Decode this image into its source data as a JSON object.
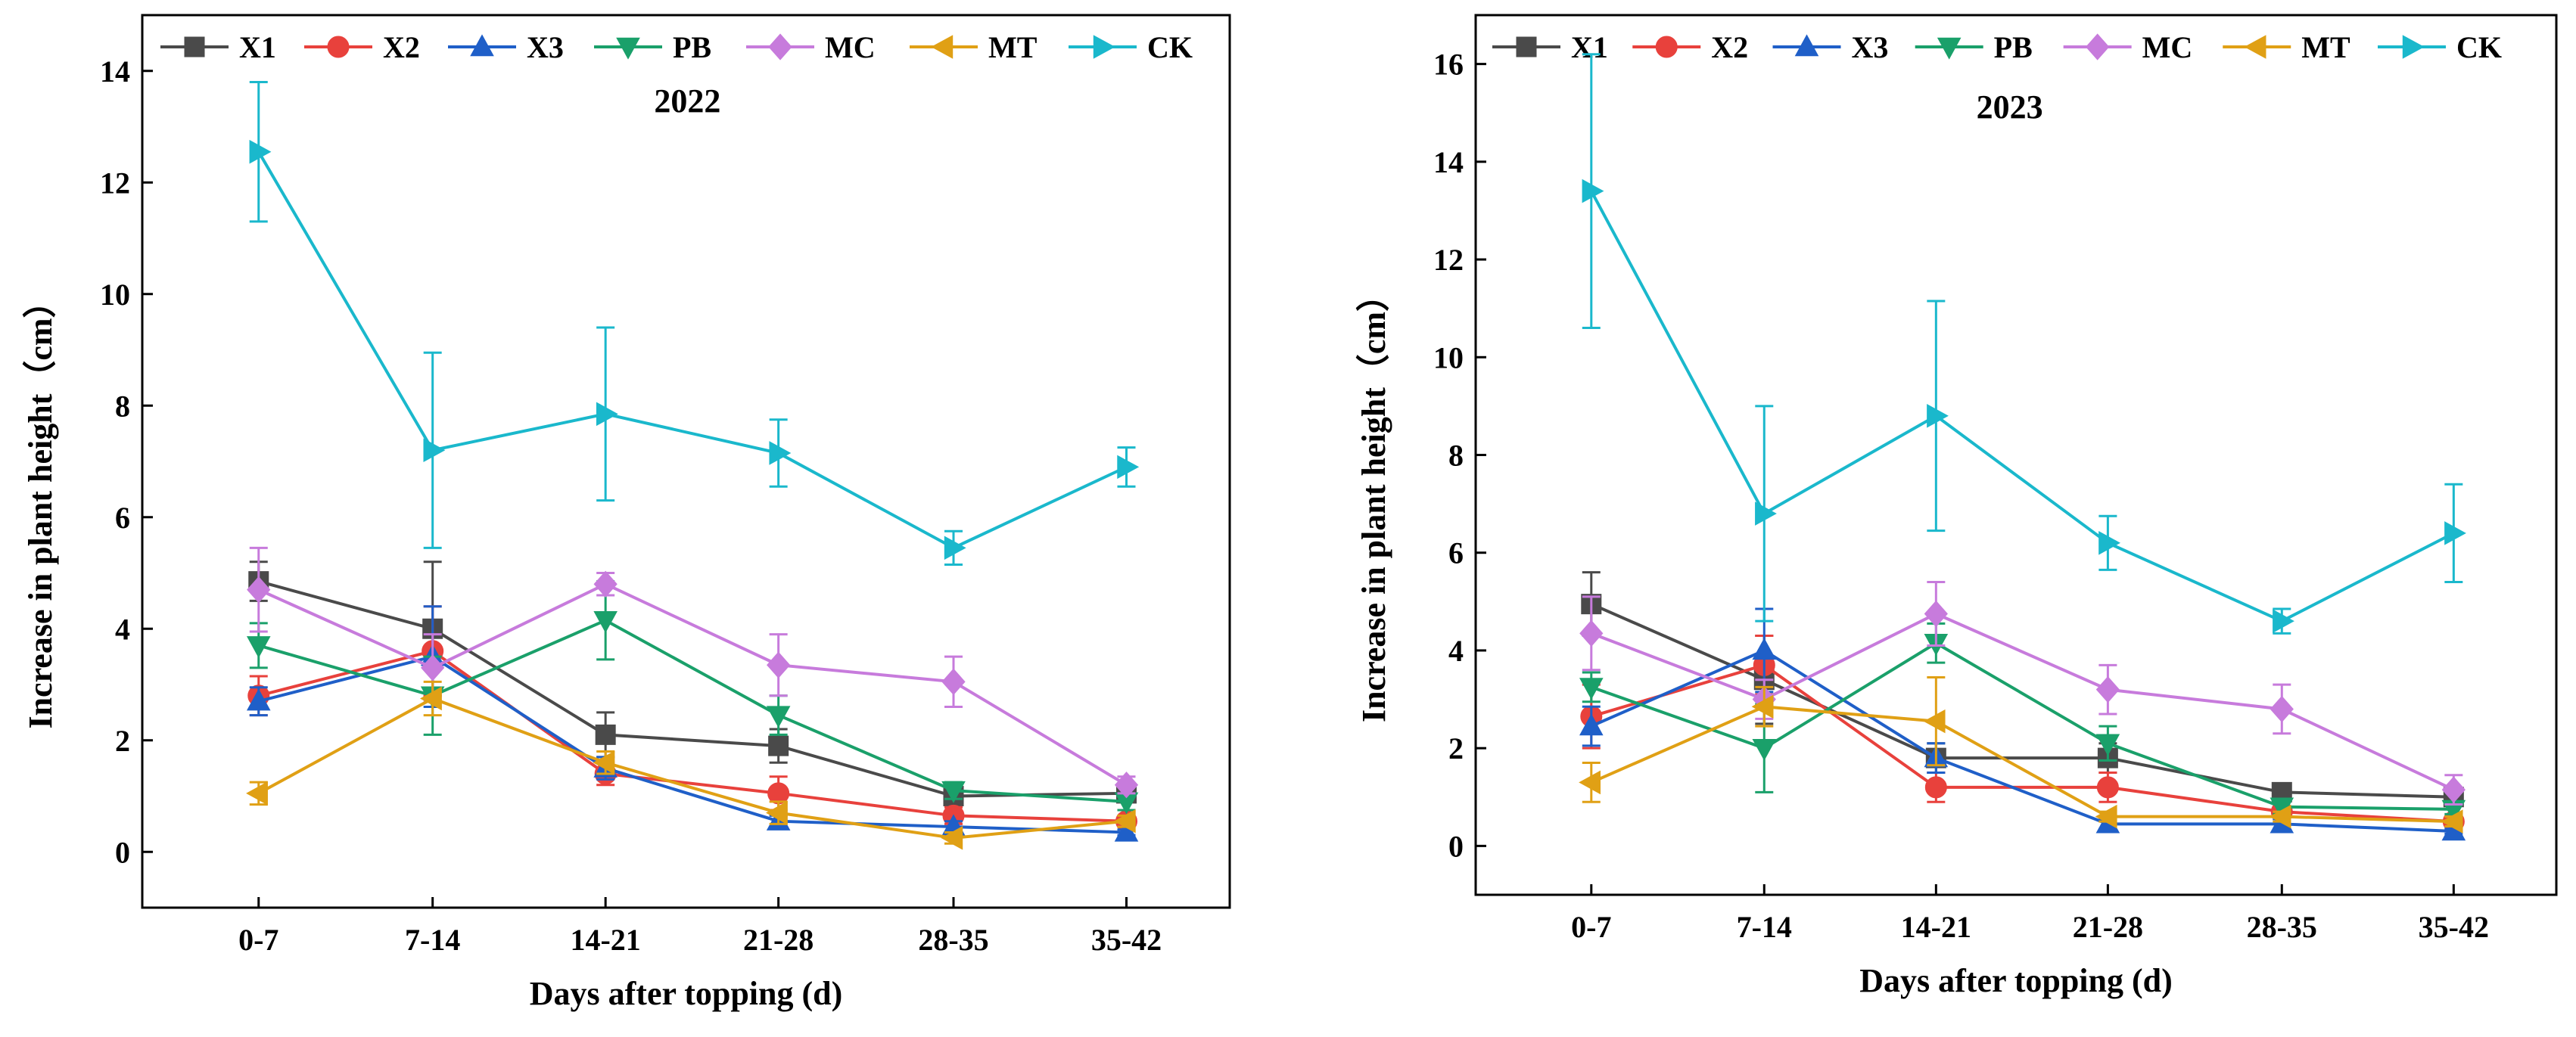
{
  "chart_data": [
    {
      "type": "line",
      "title": "2022",
      "xlabel": "Days after topping (d)",
      "ylabel": "Increase in plant height（cm）",
      "categories": [
        "0-7",
        "7-14",
        "14-21",
        "21-28",
        "28-35",
        "35-42"
      ],
      "ylim": [
        -1,
        15
      ],
      "yticks": [
        0,
        2,
        4,
        6,
        8,
        10,
        12,
        14
      ],
      "yticks_labels": [
        "0",
        "2",
        "4",
        "6",
        "8",
        "10",
        "12",
        "14"
      ],
      "legend_position": "top",
      "series": [
        {
          "name": "X1",
          "marker": "square",
          "color": "#4a4a4a",
          "values": [
            4.85,
            4.0,
            2.1,
            1.9,
            1.0,
            1.05
          ],
          "errors": [
            0.35,
            1.2,
            0.4,
            0.3,
            0.15,
            0.1
          ]
        },
        {
          "name": "X2",
          "marker": "circle",
          "color": "#e8413c",
          "values": [
            2.8,
            3.6,
            1.4,
            1.05,
            0.65,
            0.55
          ],
          "errors": [
            0.35,
            0.8,
            0.2,
            0.3,
            0.15,
            0.1
          ]
        },
        {
          "name": "X3",
          "marker": "triangle-up",
          "color": "#1f5fc8",
          "values": [
            2.7,
            3.5,
            1.5,
            0.55,
            0.45,
            0.35
          ],
          "errors": [
            0.25,
            0.9,
            0.2,
            0.1,
            0.1,
            0.05
          ]
        },
        {
          "name": "PB",
          "marker": "triangle-down",
          "color": "#1aa06a",
          "values": [
            3.7,
            2.8,
            4.15,
            2.45,
            1.1,
            0.9
          ],
          "errors": [
            0.4,
            0.7,
            0.7,
            0.35,
            0.15,
            0.15
          ]
        },
        {
          "name": "MC",
          "marker": "diamond",
          "color": "#c77bdc",
          "values": [
            4.7,
            3.3,
            4.8,
            3.35,
            3.05,
            1.2
          ],
          "errors": [
            0.75,
            0.6,
            0.2,
            0.55,
            0.45,
            0.15
          ]
        },
        {
          "name": "MT",
          "marker": "triangle-left",
          "color": "#e0a015",
          "values": [
            1.05,
            2.75,
            1.6,
            0.7,
            0.25,
            0.55
          ],
          "errors": [
            0.2,
            0.3,
            0.2,
            0.2,
            0.1,
            0.1
          ]
        },
        {
          "name": "CK",
          "marker": "triangle-right",
          "color": "#1ab8cc",
          "values": [
            12.55,
            7.2,
            7.85,
            7.15,
            5.45,
            6.9
          ],
          "errors": [
            1.25,
            1.75,
            1.55,
            0.6,
            0.3,
            0.35
          ]
        }
      ]
    },
    {
      "type": "line",
      "title": "2023",
      "xlabel": "Days after topping (d)",
      "ylabel": "Increase in plant height（cm）",
      "categories": [
        "0-7",
        "7-14",
        "14-21",
        "21-28",
        "28-35",
        "35-42"
      ],
      "ylim": [
        -1,
        17
      ],
      "yticks": [
        0,
        2,
        4,
        6,
        8,
        10,
        12,
        14,
        16
      ],
      "yticks_labels": [
        "0",
        "2",
        "4",
        "6",
        "8",
        "10",
        "12",
        "14",
        "16"
      ],
      "legend_position": "top",
      "series": [
        {
          "name": "X1",
          "marker": "square",
          "color": "#4a4a4a",
          "values": [
            4.95,
            3.4,
            1.8,
            1.8,
            1.1,
            1.0
          ],
          "errors": [
            0.65,
            0.9,
            0.3,
            0.3,
            0.1,
            0.1
          ]
        },
        {
          "name": "X2",
          "marker": "circle",
          "color": "#e8413c",
          "values": [
            2.65,
            3.7,
            1.2,
            1.2,
            0.7,
            0.5
          ],
          "errors": [
            0.65,
            0.6,
            0.3,
            0.3,
            0.1,
            0.1
          ]
        },
        {
          "name": "X3",
          "marker": "triangle-up",
          "color": "#1f5fc8",
          "values": [
            2.45,
            4.0,
            1.8,
            0.45,
            0.45,
            0.3
          ],
          "errors": [
            0.4,
            0.85,
            0.3,
            0.1,
            0.1,
            0.05
          ]
        },
        {
          "name": "PB",
          "marker": "triangle-down",
          "color": "#1aa06a",
          "values": [
            3.25,
            2.0,
            4.15,
            2.1,
            0.8,
            0.75
          ],
          "errors": [
            0.3,
            0.9,
            0.4,
            0.35,
            0.15,
            0.1
          ]
        },
        {
          "name": "MC",
          "marker": "diamond",
          "color": "#c77bdc",
          "values": [
            4.35,
            3.0,
            4.75,
            3.2,
            2.8,
            1.15
          ],
          "errors": [
            0.75,
            0.4,
            0.65,
            0.5,
            0.5,
            0.3
          ]
        },
        {
          "name": "MT",
          "marker": "triangle-left",
          "color": "#e0a015",
          "values": [
            1.3,
            2.85,
            2.55,
            0.6,
            0.6,
            0.5
          ],
          "errors": [
            0.4,
            0.4,
            0.9,
            0.1,
            0.1,
            0.1
          ]
        },
        {
          "name": "CK",
          "marker": "triangle-right",
          "color": "#1ab8cc",
          "values": [
            13.4,
            6.8,
            8.8,
            6.2,
            4.6,
            6.4
          ],
          "errors": [
            2.8,
            2.2,
            2.35,
            0.55,
            0.25,
            1.0
          ]
        }
      ]
    }
  ]
}
